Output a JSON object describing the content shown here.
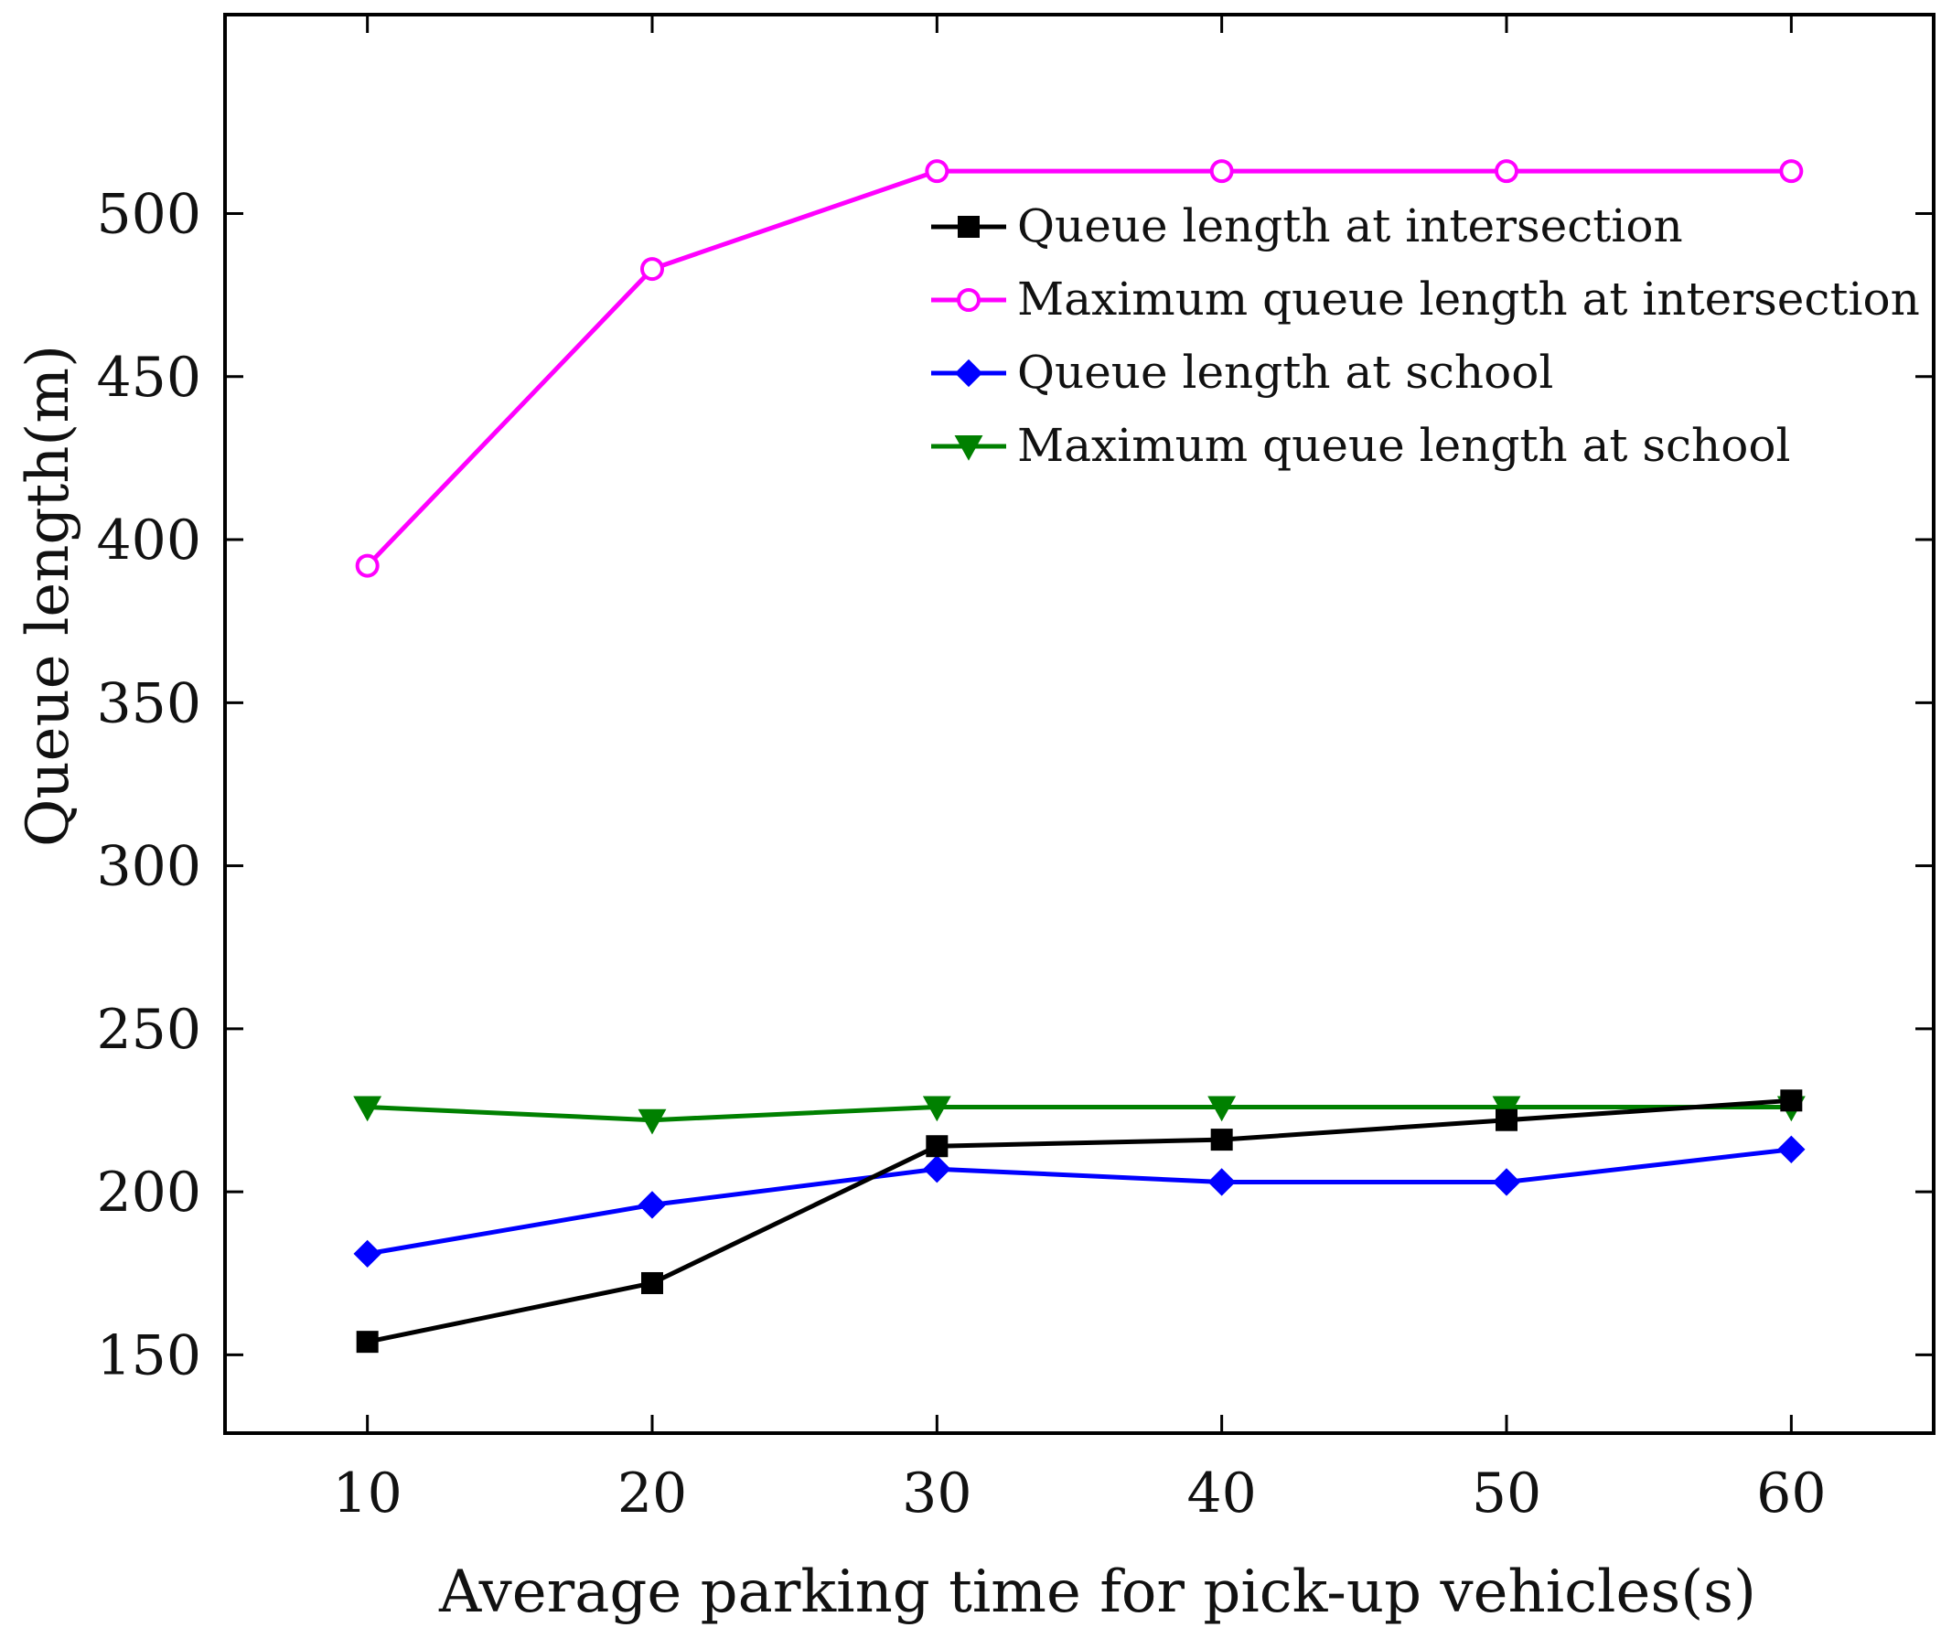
{
  "chart_data": {
    "type": "line",
    "title": "",
    "xlabel": "Average parking time for pick-up vehicles(s)",
    "ylabel": "Queue length(m)",
    "x": [
      10,
      20,
      30,
      40,
      50,
      60
    ],
    "xlim": [
      5,
      65
    ],
    "ylim": [
      126,
      561
    ],
    "xticks": [
      10,
      20,
      30,
      40,
      50,
      60
    ],
    "yticks": [
      150,
      200,
      250,
      300,
      350,
      400,
      450,
      500
    ],
    "grid": false,
    "legend_position": "top-right",
    "series": [
      {
        "name": "Queue length at intersection",
        "color": "#000000",
        "marker": "square",
        "markerFill": "#000000",
        "values": [
          154,
          172,
          214,
          216,
          222,
          228
        ]
      },
      {
        "name": "Maximum queue length at intersection",
        "color": "#ff00ff",
        "marker": "circle",
        "markerFill": "#ffffff",
        "values": [
          392,
          483,
          513,
          513,
          513,
          513
        ]
      },
      {
        "name": "Queue length at school",
        "color": "#0000ff",
        "marker": "diamond",
        "markerFill": "#0000ff",
        "values": [
          181,
          196,
          207,
          203,
          203,
          213
        ]
      },
      {
        "name": "Maximum queue length at school",
        "color": "#008000",
        "marker": "triangle-down",
        "markerFill": "#008000",
        "values": [
          226,
          222,
          226,
          226,
          226,
          226
        ]
      }
    ]
  }
}
